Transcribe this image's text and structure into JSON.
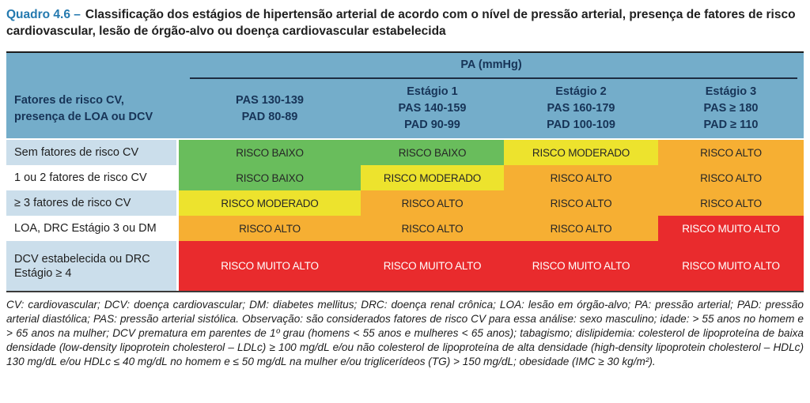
{
  "title": {
    "label": "Quadro 4.6 –",
    "text": "Classificação dos estágios de hipertensão arterial de acordo com o nível de pressão arterial, presença de fatores de risco cardiovascular, lesão de órgão-alvo ou doença cardiovascular estabelecida"
  },
  "table": {
    "pa_header": "PA (mmHg)",
    "row_header_line1": "Fatores de risco CV,",
    "row_header_line2": "presença de LOA ou DCV",
    "columns": [
      {
        "stage": "",
        "pas": "PAS 130-139",
        "pad": "PAD 80-89"
      },
      {
        "stage": "Estágio 1",
        "pas": "PAS 140-159",
        "pad": "PAD 90-99"
      },
      {
        "stage": "Estágio 2",
        "pas": "PAS 160-179",
        "pad": "PAD 100-109"
      },
      {
        "stage": "Estágio 3",
        "pas": "PAS ≥ 180",
        "pad": "PAD ≥ 110"
      }
    ],
    "rows": [
      {
        "label": "Sem fatores de risco CV",
        "cells": [
          {
            "text": "RISCO BAIXO",
            "level": "baixo"
          },
          {
            "text": "RISCO BAIXO",
            "level": "baixo"
          },
          {
            "text": "RISCO MODERADO",
            "level": "moderado"
          },
          {
            "text": "RISCO ALTO",
            "level": "alto"
          }
        ]
      },
      {
        "label": "1 ou 2 fatores de risco CV",
        "cells": [
          {
            "text": "RISCO BAIXO",
            "level": "baixo"
          },
          {
            "text": "RISCO MODERADO",
            "level": "moderado"
          },
          {
            "text": "RISCO ALTO",
            "level": "alto"
          },
          {
            "text": "RISCO ALTO",
            "level": "alto"
          }
        ]
      },
      {
        "label": "≥ 3 fatores de risco CV",
        "cells": [
          {
            "text": "RISCO MODERADO",
            "level": "moderado"
          },
          {
            "text": "RISCO ALTO",
            "level": "alto"
          },
          {
            "text": "RISCO ALTO",
            "level": "alto"
          },
          {
            "text": "RISCO ALTO",
            "level": "alto"
          }
        ]
      },
      {
        "label": "LOA, DRC Estágio 3 ou DM",
        "cells": [
          {
            "text": "RISCO ALTO",
            "level": "alto"
          },
          {
            "text": "RISCO ALTO",
            "level": "alto"
          },
          {
            "text": "RISCO ALTO",
            "level": "alto"
          },
          {
            "text": "RISCO MUITO ALTO",
            "level": "muito-alto"
          }
        ]
      },
      {
        "label": "DCV estabelecida ou DRC Estágio ≥ 4",
        "cells": [
          {
            "text": "RISCO MUITO ALTO",
            "level": "muito-alto"
          },
          {
            "text": "RISCO MUITO ALTO",
            "level": "muito-alto"
          },
          {
            "text": "RISCO MUITO ALTO",
            "level": "muito-alto"
          },
          {
            "text": "RISCO MUITO ALTO",
            "level": "muito-alto"
          }
        ]
      }
    ]
  },
  "footnote": {
    "text": "CV: cardiovascular; DCV: doença cardiovascular; DM: diabetes mellitus; DRC: doença renal crônica; LOA: lesão em órgão-alvo; PA: pressão arterial; PAD: pressão arterial diastólica; PAS: pressão arterial sistólica. Observação: são considerados fatores de risco CV para essa análise: sexo masculino; idade: > 55 anos no homem e > 65 anos na mulher; DCV prematura em parentes de 1º grau (homens < 55 anos e mulheres < 65 anos); tabagismo; dislipidemia: colesterol de lipoproteína de baixa densidade (low-density lipoprotein cholesterol – LDLc) ≥ 100 mg/dL e/ou não colesterol de lipoproteína de alta densidade (high-density lipoprotein cholesterol – HDLc) 130 mg/dL e/ou HDLc ≤ 40 mg/dL no homem e ≤ 50 mg/dL na mulher e/ou triglicerídeos (TG) > 150 mg/dL; obesidade (IMC ≥ 30 kg/m²)."
  },
  "colors": {
    "title_accent": "#2479AF",
    "header_blue": "#74ADCA",
    "header_text": "#173457",
    "row_blue": "#CBDEEB",
    "risk_baixo": "#69BD5C",
    "risk_moderado": "#EDE32D",
    "risk_alto": "#F6AF33",
    "risk_muito_alto": "#E92B2D"
  }
}
